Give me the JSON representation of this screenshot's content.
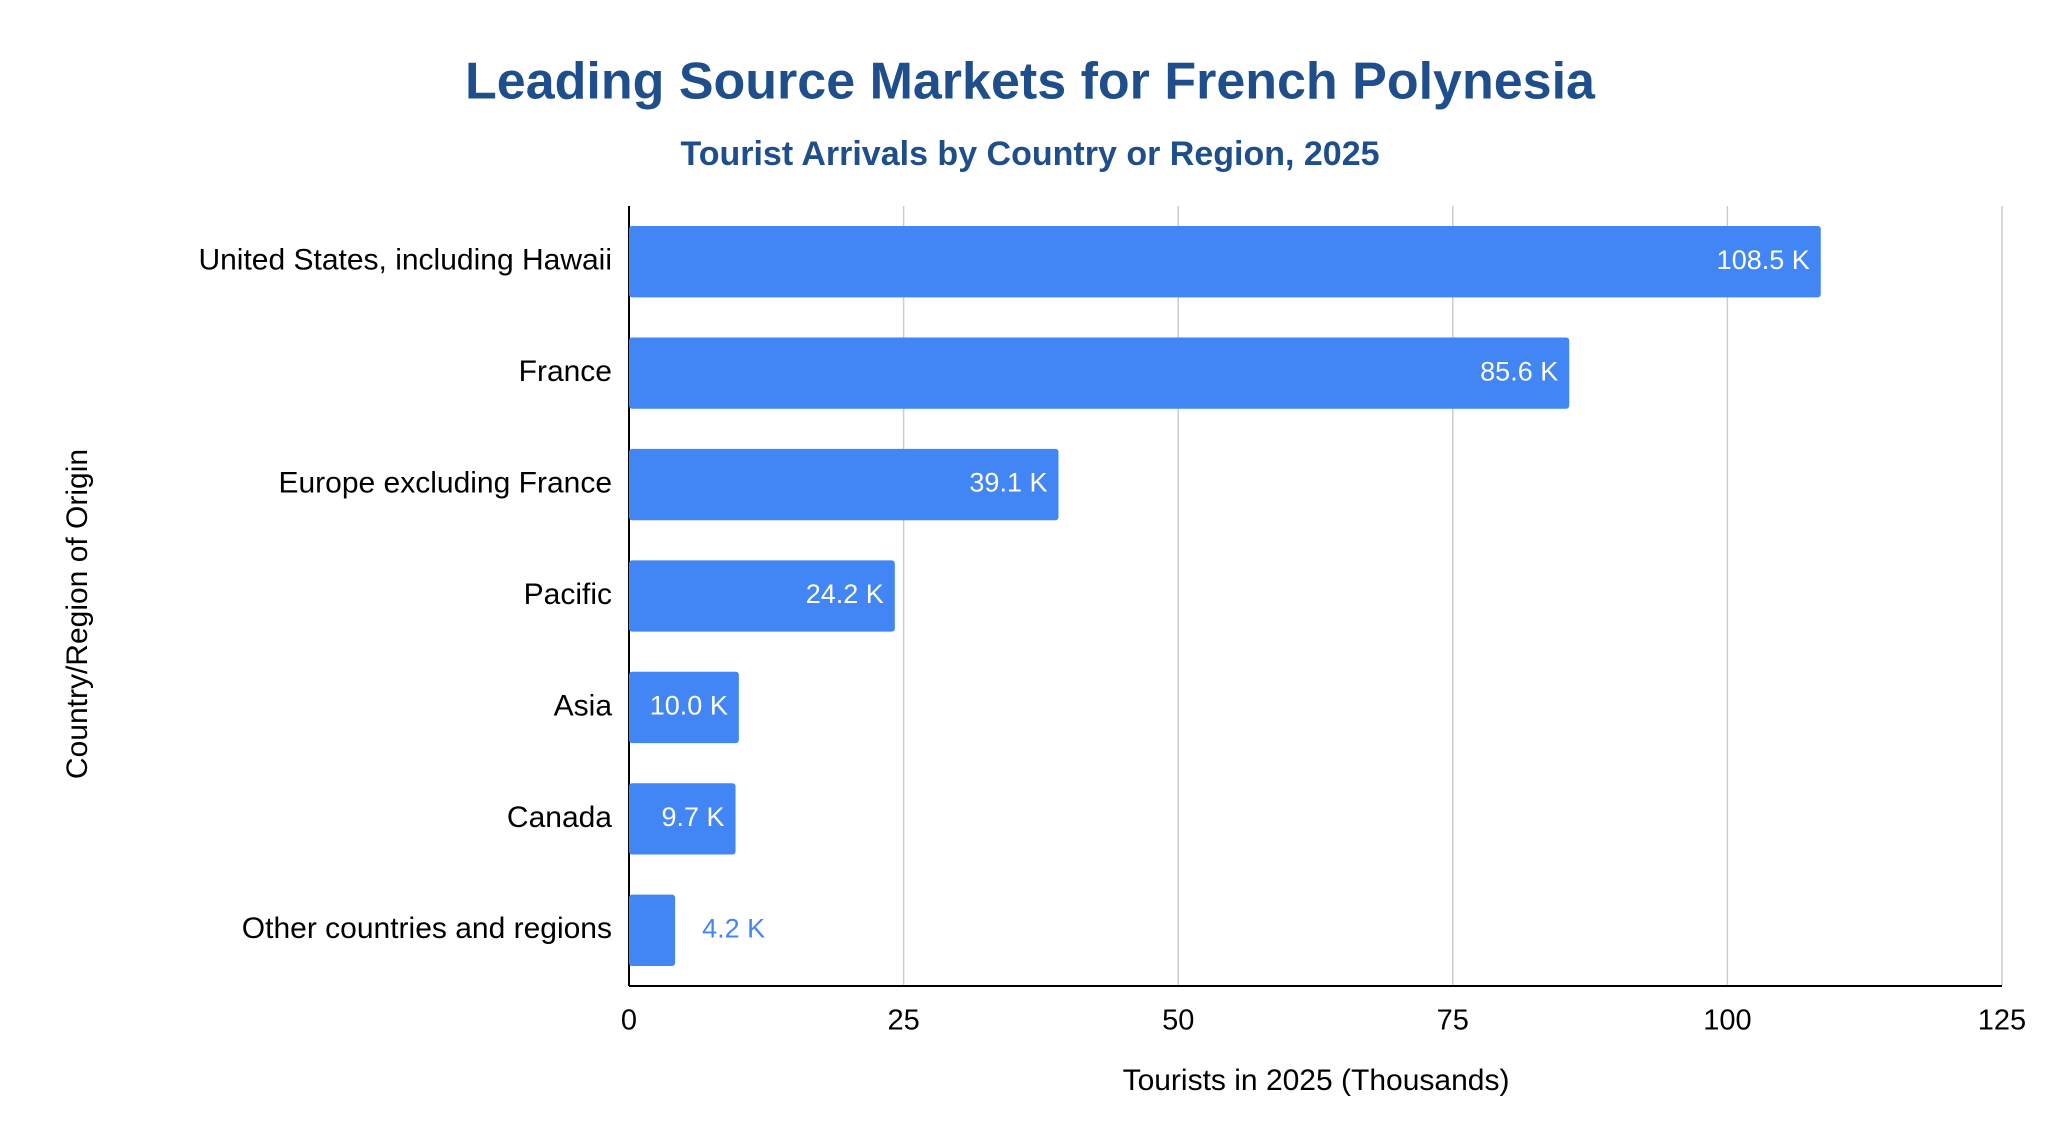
{
  "chart_data": {
    "type": "bar",
    "orientation": "horizontal",
    "title": "Leading Source Markets for French Polynesia",
    "subtitle": "Tourist Arrivals by Country or Region, 2025",
    "x_label": "Tourists in 2025 (Thousands)",
    "y_label": "Country/Region of Origin",
    "categories": [
      "United States, including Hawaii",
      "France",
      "Europe excluding France",
      "Pacific",
      "Asia",
      "Canada",
      "Other countries and regions"
    ],
    "values": [
      108.5,
      85.6,
      39.1,
      24.2,
      10.0,
      9.7,
      4.2
    ],
    "value_labels": [
      "108.5 K",
      "85.6 K",
      "39.1 K",
      "24.2 K",
      "10.0 K",
      "9.7 K",
      "4.2 K"
    ],
    "color": "#4285f4",
    "xlim": [
      0,
      125
    ],
    "xticks": [
      0,
      25,
      50,
      75,
      100,
      125
    ],
    "grid": true
  }
}
